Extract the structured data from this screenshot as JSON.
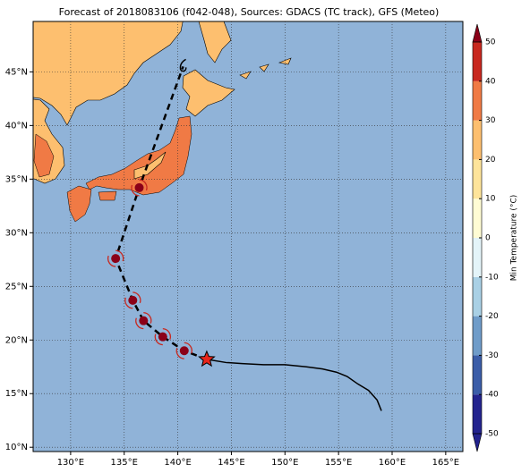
{
  "title": "Forecast of 2018083106 (f042-048), Sources: GDACS (TC track), GFS (Meteo)",
  "map": {
    "xlim": [
      126.5,
      166.6
    ],
    "ylim": [
      9.6,
      49.7
    ],
    "xticks": [
      {
        "value": 130,
        "label": "130°E"
      },
      {
        "value": 135,
        "label": "135°E"
      },
      {
        "value": 140,
        "label": "140°E"
      },
      {
        "value": 145,
        "label": "145°E"
      },
      {
        "value": 150,
        "label": "150°E"
      },
      {
        "value": 155,
        "label": "155°E"
      },
      {
        "value": 160,
        "label": "160°E"
      },
      {
        "value": 165,
        "label": "165°E"
      }
    ],
    "yticks": [
      {
        "value": 10,
        "label": "10°N"
      },
      {
        "value": 15,
        "label": "15°N"
      },
      {
        "value": 20,
        "label": "20°N"
      },
      {
        "value": 25,
        "label": "25°N"
      },
      {
        "value": 30,
        "label": "30°N"
      },
      {
        "value": 35,
        "label": "35°N"
      },
      {
        "value": 40,
        "label": "40°N"
      },
      {
        "value": 45,
        "label": "45°N"
      }
    ]
  },
  "colorbar": {
    "label": "Min Temperature (°C)",
    "lim": [
      -50,
      50
    ],
    "ticks": [
      -50,
      -40,
      -30,
      -20,
      -10,
      0,
      10,
      20,
      30,
      40,
      50
    ],
    "colors": [
      "#23238e",
      "#3b5da8",
      "#6f9cc9",
      "#a9d0e5",
      "#e4f4f9",
      "#fffcd4",
      "#fee49a",
      "#fdbf6f",
      "#f07a45",
      "#c8281f",
      "#8b0018"
    ]
  },
  "observed_track": {
    "lon": [
      159.0,
      158.6,
      157.8,
      156.8,
      155.8,
      154.8,
      153.5,
      152.0,
      150.0,
      148.0,
      146.0,
      144.5,
      142.7
    ],
    "lat": [
      13.4,
      14.4,
      15.3,
      15.9,
      16.6,
      17.0,
      17.3,
      17.5,
      17.7,
      17.7,
      17.8,
      17.9,
      18.2
    ]
  },
  "forecast_track": {
    "lon": [
      142.7,
      140.6,
      138.6,
      136.8,
      135.8,
      134.2,
      136.4,
      140.5
    ],
    "lat": [
      18.2,
      19.0,
      20.3,
      21.8,
      23.7,
      27.6,
      34.2,
      45.5
    ]
  }
}
